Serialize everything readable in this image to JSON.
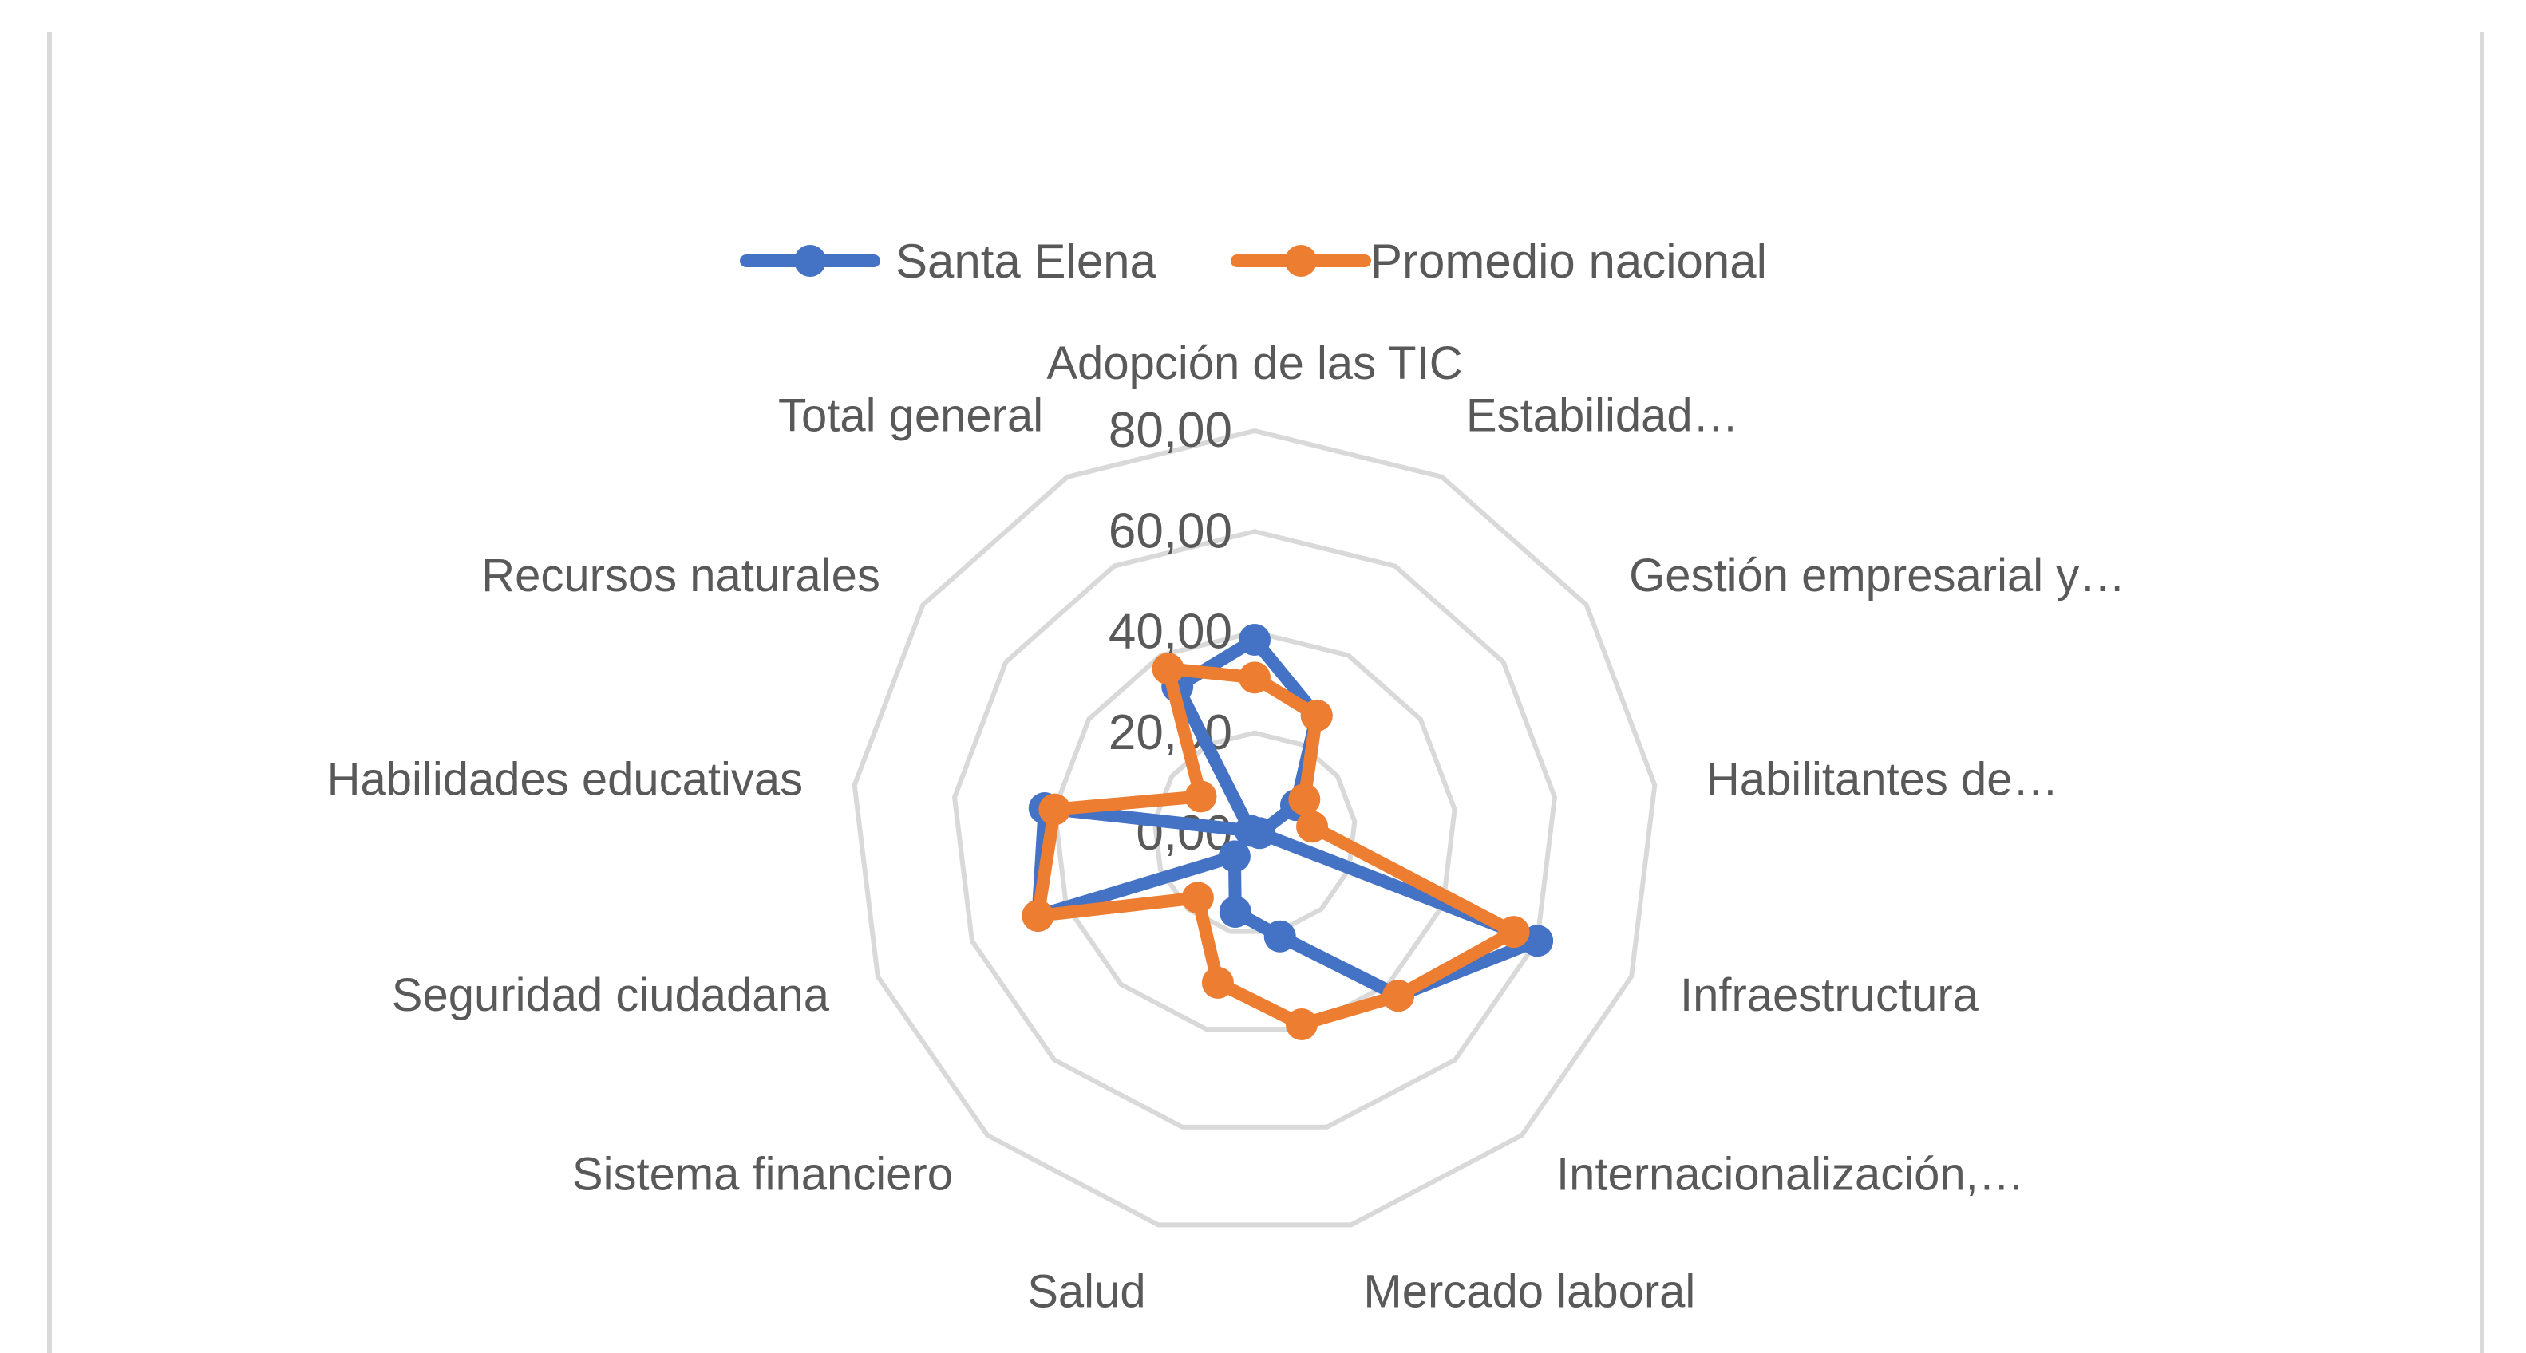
{
  "chart_data": {
    "type": "radar",
    "categories": [
      "Adopción de las TIC",
      "Estabilidad…",
      "Gestión empresarial y…",
      "Habilitantes de…",
      "Infraestructura",
      "Internacionalización,…",
      "Mercado laboral",
      "Salud",
      "Sistema financiero",
      "Seguridad ciudadana",
      "Habilidades educativas",
      "Recursos naturales",
      "Total general"
    ],
    "series": [
      {
        "name": "Santa Elena",
        "color": "#4472C4",
        "values": [
          38.5,
          26.5,
          10.0,
          1.0,
          60.0,
          43.0,
          21.0,
          16.0,
          6.0,
          46.0,
          42.0,
          1.0,
          33.0
        ]
      },
      {
        "name": "Promedio nacional",
        "color": "#ED7D31",
        "values": [
          31.0,
          26.5,
          12.0,
          11.5,
          55.0,
          43.0,
          39.0,
          30.5,
          17.0,
          46.0,
          40.0,
          13.0,
          37.0
        ]
      }
    ],
    "radial_ticks": [
      "0,00",
      "20,00",
      "40,00",
      "60,00",
      "80,00"
    ],
    "rmin": 0,
    "rmax": 80,
    "grid": true,
    "legend_position": "top"
  }
}
